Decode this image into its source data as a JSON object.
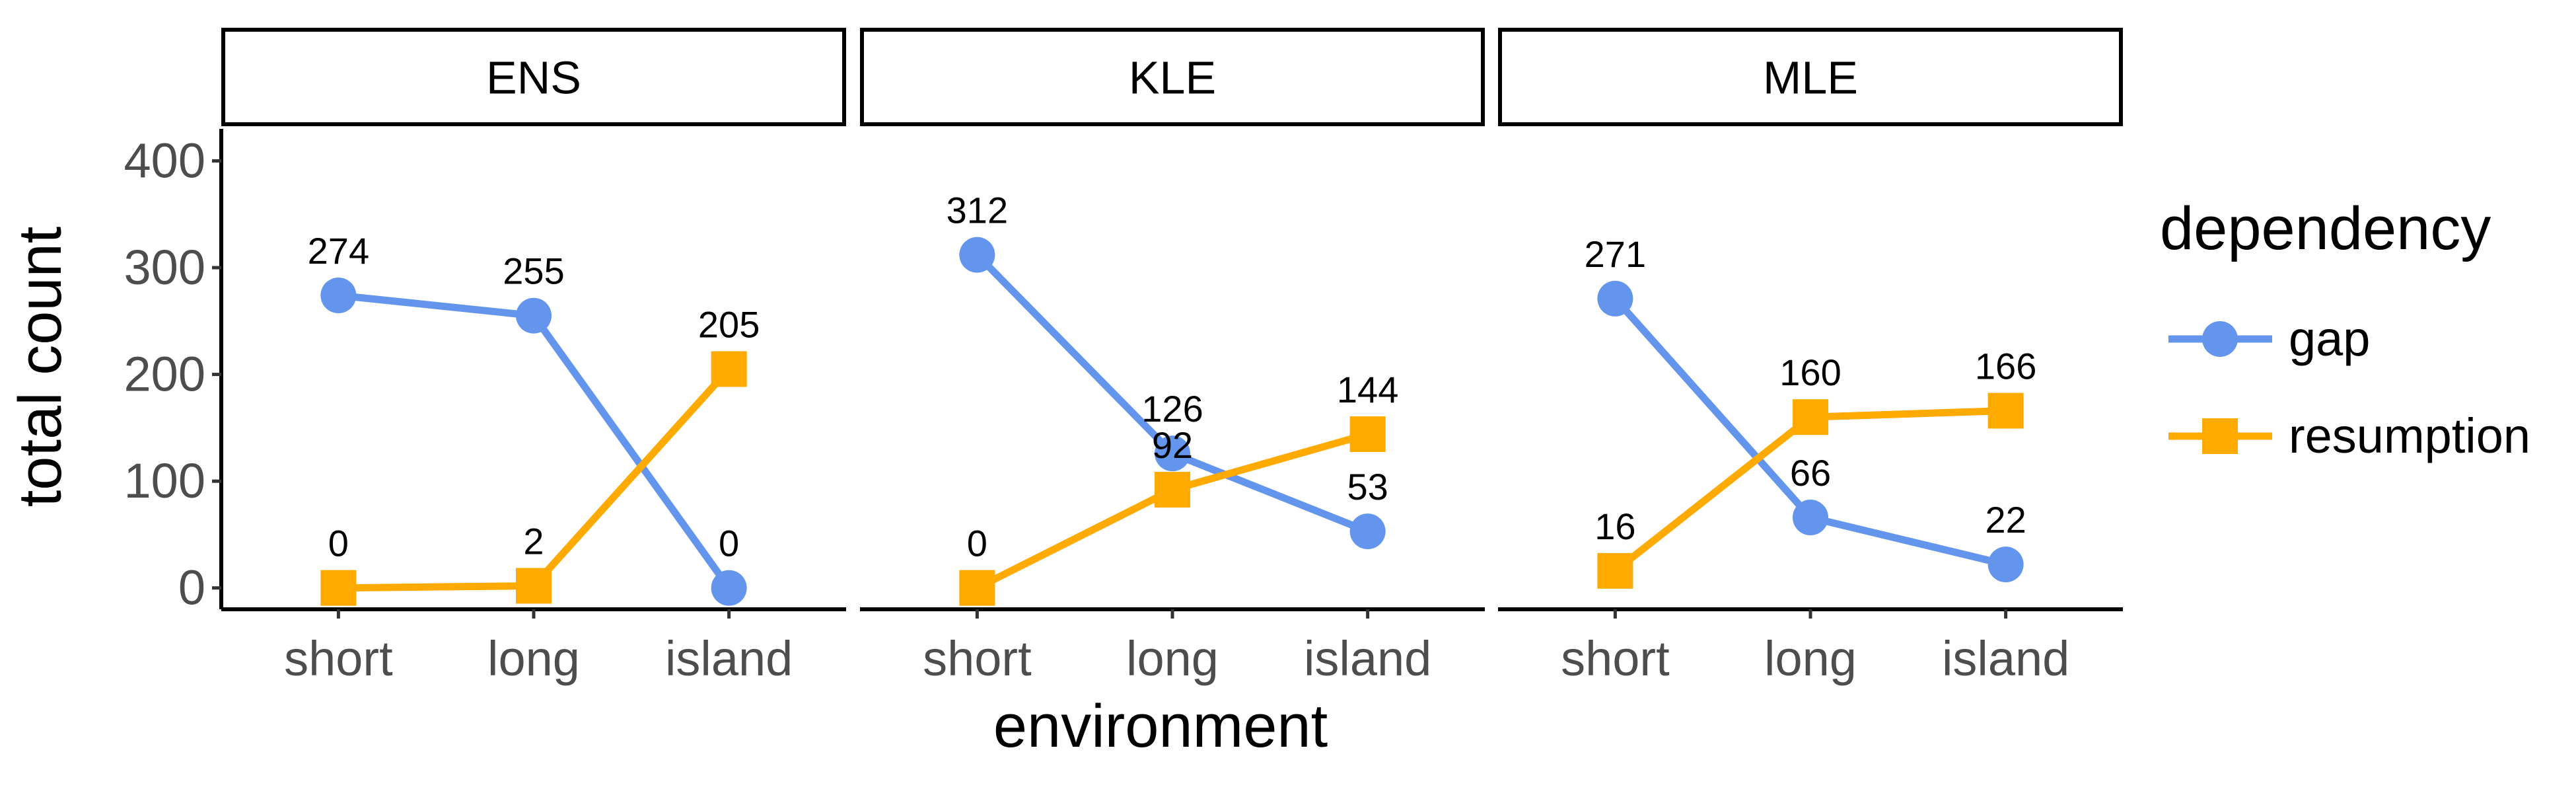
{
  "chart_data": {
    "type": "line",
    "facets": [
      "ENS",
      "KLE",
      "MLE"
    ],
    "categories": [
      "short",
      "long",
      "island"
    ],
    "xlabel": "environment",
    "ylabel": "total count",
    "ylim": [
      -20,
      430
    ],
    "y_ticks": [
      0,
      100,
      200,
      300,
      400
    ],
    "legend": {
      "title": "dependency",
      "position": "right"
    },
    "series": [
      {
        "name": "gap",
        "color": "#6495ED",
        "marker": "circle",
        "values": {
          "ENS": [
            274,
            255,
            0
          ],
          "KLE": [
            312,
            126,
            53
          ],
          "MLE": [
            271,
            66,
            22
          ]
        }
      },
      {
        "name": "resumption",
        "color": "#FFAA00",
        "marker": "square",
        "values": {
          "ENS": [
            0,
            2,
            205
          ],
          "KLE": [
            0,
            92,
            144
          ],
          "MLE": [
            16,
            160,
            166
          ]
        }
      }
    ],
    "grid": false
  }
}
